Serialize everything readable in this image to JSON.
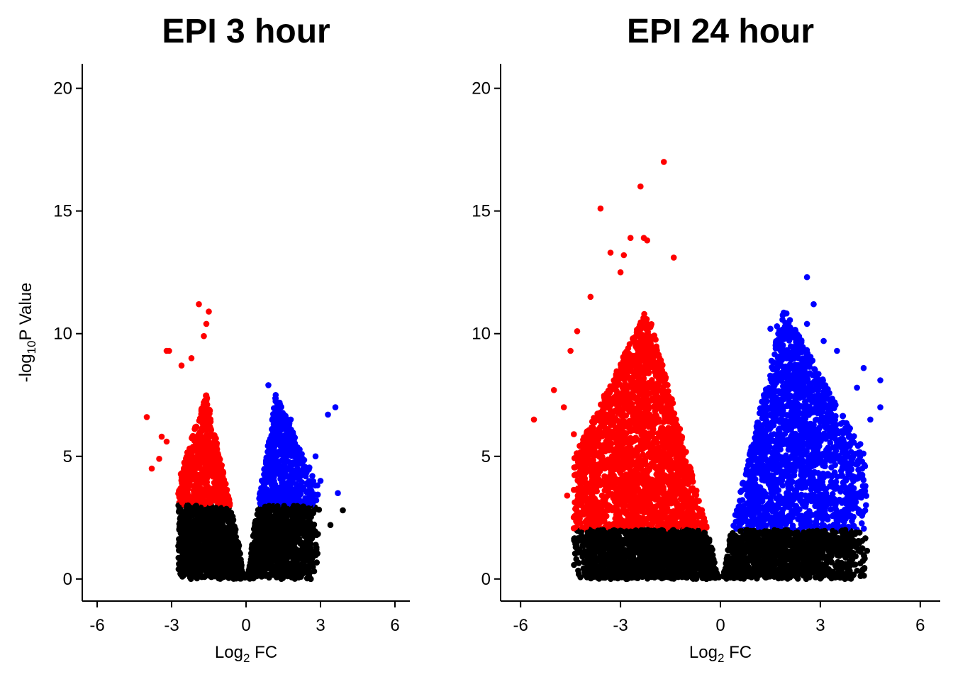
{
  "chart_data": [
    {
      "type": "scatter",
      "title": "EPI 3 hour",
      "xlabel": "Log2 FC",
      "xlabel_main": "Log",
      "xlabel_sub": "2",
      "xlabel_tail": " FC",
      "ylabel": "-log10P Value",
      "ylabel_main": "-log",
      "ylabel_sub": "10",
      "ylabel_tail": "P Value",
      "xlim": [
        -6.6,
        6.6
      ],
      "ylim": [
        -0.9,
        21
      ],
      "xticks": [
        -6,
        -3,
        0,
        3,
        6
      ],
      "xtick_labels": [
        "-6",
        "-3",
        "0",
        "3",
        "6"
      ],
      "yticks": [
        0,
        5,
        10,
        15,
        20
      ],
      "ytick_labels": [
        "0",
        "5",
        "10",
        "15",
        "20"
      ],
      "grid": false,
      "significance_threshold_y": 3.0,
      "colors": {
        "down": "#ff0000",
        "up": "#0000ff",
        "ns": "#000000"
      },
      "spread": {
        "left_x": -2.6,
        "right_x": 2.8,
        "peak_left_x": -1.6,
        "peak_right_x": 1.2,
        "peak_y": 7.5
      },
      "highlight_points": [
        {
          "x": -1.9,
          "y": 11.2,
          "group": "down"
        },
        {
          "x": -1.5,
          "y": 10.9,
          "group": "down"
        },
        {
          "x": -1.6,
          "y": 10.4,
          "group": "down"
        },
        {
          "x": -1.7,
          "y": 9.9,
          "group": "down"
        },
        {
          "x": -3.1,
          "y": 9.3,
          "group": "down"
        },
        {
          "x": -3.2,
          "y": 9.3,
          "group": "down"
        },
        {
          "x": -2.2,
          "y": 9.0,
          "group": "down"
        },
        {
          "x": -2.6,
          "y": 8.7,
          "group": "down"
        },
        {
          "x": -4.0,
          "y": 6.6,
          "group": "down"
        },
        {
          "x": -3.4,
          "y": 5.8,
          "group": "down"
        },
        {
          "x": -3.2,
          "y": 5.6,
          "group": "down"
        },
        {
          "x": -3.5,
          "y": 4.9,
          "group": "down"
        },
        {
          "x": -3.8,
          "y": 4.5,
          "group": "down"
        },
        {
          "x": 0.9,
          "y": 7.9,
          "group": "up"
        },
        {
          "x": 1.3,
          "y": 7.1,
          "group": "up"
        },
        {
          "x": 3.6,
          "y": 7.0,
          "group": "up"
        },
        {
          "x": 3.3,
          "y": 6.7,
          "group": "up"
        },
        {
          "x": 1.8,
          "y": 6.5,
          "group": "up"
        },
        {
          "x": 1.7,
          "y": 6.2,
          "group": "up"
        },
        {
          "x": 1.1,
          "y": 6.0,
          "group": "up"
        },
        {
          "x": 2.8,
          "y": 5.0,
          "group": "up"
        },
        {
          "x": 3.0,
          "y": 4.0,
          "group": "up"
        },
        {
          "x": 3.7,
          "y": 3.5,
          "group": "up"
        },
        {
          "x": 3.9,
          "y": 2.8,
          "group": "ns"
        },
        {
          "x": 3.4,
          "y": 2.2,
          "group": "ns"
        }
      ]
    },
    {
      "type": "scatter",
      "title": "EPI 24 hour",
      "xlabel": "Log2 FC",
      "xlabel_main": "Log",
      "xlabel_sub": "2",
      "xlabel_tail": " FC",
      "ylabel": "",
      "xlim": [
        -6.6,
        6.6
      ],
      "ylim": [
        -0.9,
        21
      ],
      "xticks": [
        -6,
        -3,
        0,
        3,
        6
      ],
      "xtick_labels": [
        "-6",
        "-3",
        "0",
        "3",
        "6"
      ],
      "yticks": [
        0,
        5,
        10,
        15,
        20
      ],
      "ytick_labels": [
        "0",
        "5",
        "10",
        "15",
        "20"
      ],
      "grid": false,
      "significance_threshold_y": 2.0,
      "colors": {
        "down": "#ff0000",
        "up": "#0000ff",
        "ns": "#000000"
      },
      "spread": {
        "left_x": -4.2,
        "right_x": 4.2,
        "peak_left_x": -2.2,
        "peak_right_x": 1.9,
        "peak_y": 11.0
      },
      "highlight_points": [
        {
          "x": -1.7,
          "y": 17.0,
          "group": "down"
        },
        {
          "x": -2.4,
          "y": 16.0,
          "group": "down"
        },
        {
          "x": -3.6,
          "y": 15.1,
          "group": "down"
        },
        {
          "x": -2.7,
          "y": 13.9,
          "group": "down"
        },
        {
          "x": -2.3,
          "y": 13.9,
          "group": "down"
        },
        {
          "x": -2.2,
          "y": 13.8,
          "group": "down"
        },
        {
          "x": -3.3,
          "y": 13.3,
          "group": "down"
        },
        {
          "x": -2.9,
          "y": 13.2,
          "group": "down"
        },
        {
          "x": -1.4,
          "y": 13.1,
          "group": "down"
        },
        {
          "x": -3.0,
          "y": 12.5,
          "group": "down"
        },
        {
          "x": -3.9,
          "y": 11.5,
          "group": "down"
        },
        {
          "x": -4.3,
          "y": 10.1,
          "group": "down"
        },
        {
          "x": -4.5,
          "y": 9.3,
          "group": "down"
        },
        {
          "x": -5.0,
          "y": 7.7,
          "group": "down"
        },
        {
          "x": -4.7,
          "y": 7.0,
          "group": "down"
        },
        {
          "x": -5.6,
          "y": 6.5,
          "group": "down"
        },
        {
          "x": -4.4,
          "y": 5.9,
          "group": "down"
        },
        {
          "x": -4.6,
          "y": 3.4,
          "group": "down"
        },
        {
          "x": 2.6,
          "y": 12.3,
          "group": "up"
        },
        {
          "x": 2.8,
          "y": 11.2,
          "group": "up"
        },
        {
          "x": 2.6,
          "y": 10.4,
          "group": "up"
        },
        {
          "x": 1.7,
          "y": 10.3,
          "group": "up"
        },
        {
          "x": 1.5,
          "y": 10.2,
          "group": "up"
        },
        {
          "x": 3.1,
          "y": 9.7,
          "group": "up"
        },
        {
          "x": 3.5,
          "y": 9.3,
          "group": "up"
        },
        {
          "x": 4.3,
          "y": 8.6,
          "group": "up"
        },
        {
          "x": 4.8,
          "y": 8.1,
          "group": "up"
        },
        {
          "x": 4.1,
          "y": 7.8,
          "group": "up"
        },
        {
          "x": 4.8,
          "y": 7.0,
          "group": "up"
        },
        {
          "x": 4.5,
          "y": 6.5,
          "group": "up"
        },
        {
          "x": 4.2,
          "y": 5.5,
          "group": "up"
        },
        {
          "x": 4.0,
          "y": 3.7,
          "group": "up"
        },
        {
          "x": -2.7,
          "y": 1.4,
          "group": "ns"
        },
        {
          "x": -2.3,
          "y": 0.7,
          "group": "ns"
        },
        {
          "x": 3.4,
          "y": 1.4,
          "group": "ns"
        },
        {
          "x": 3.1,
          "y": 1.3,
          "group": "ns"
        }
      ]
    }
  ]
}
